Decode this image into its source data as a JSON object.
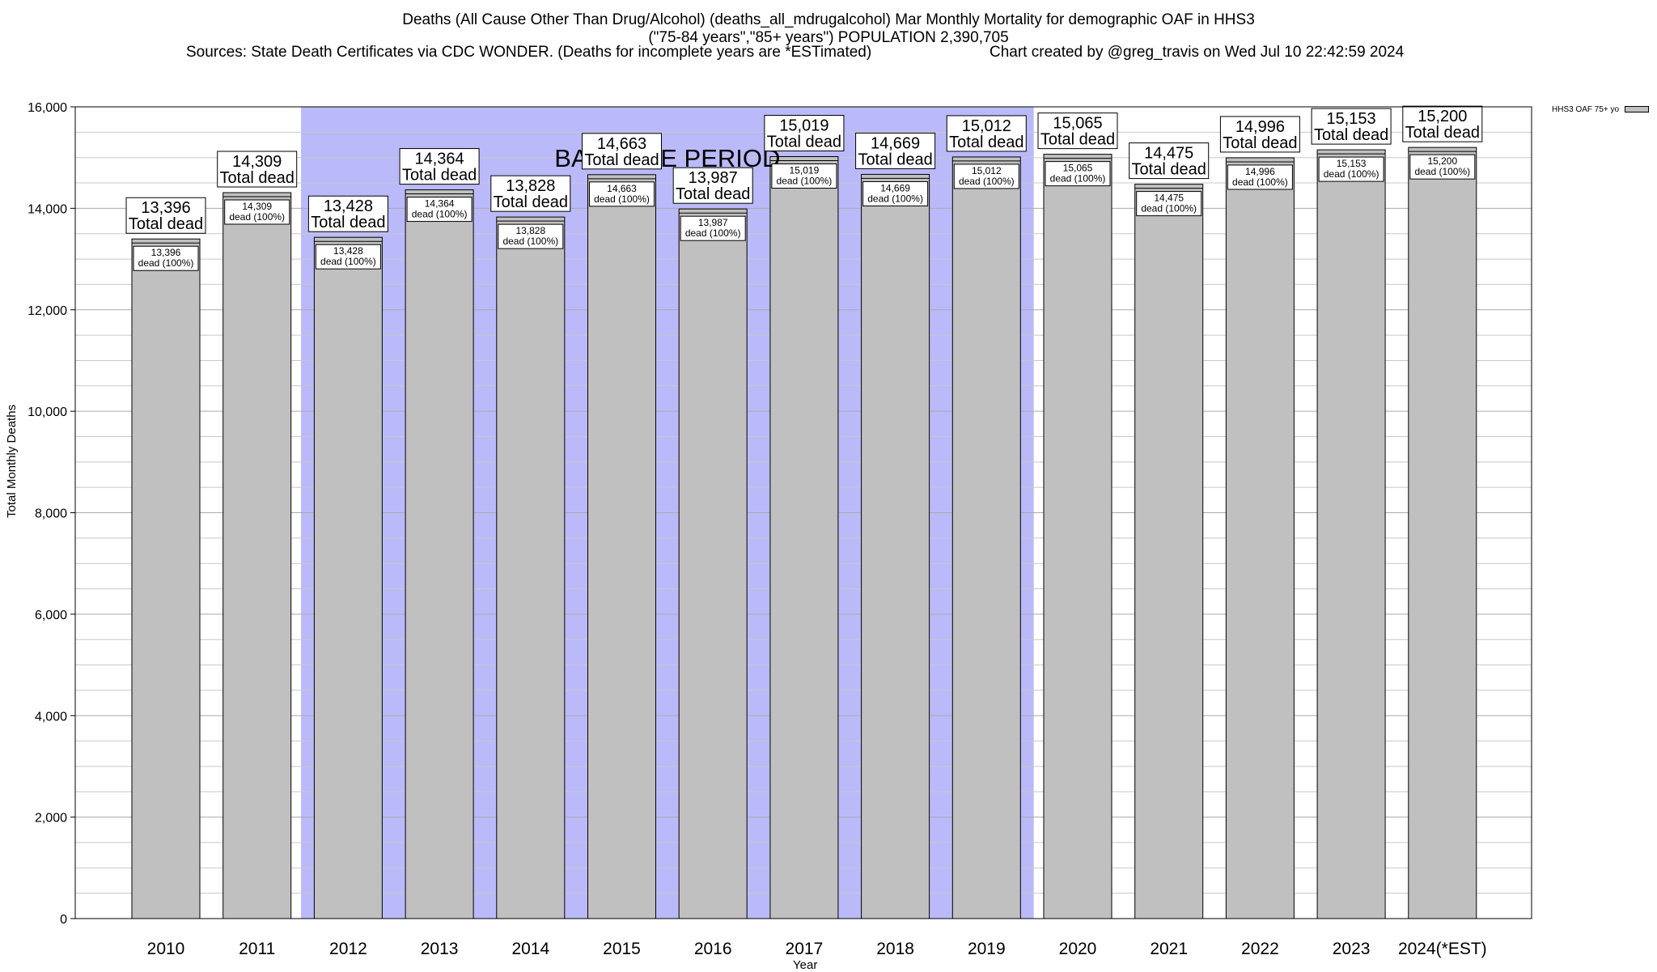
{
  "title": {
    "line1": "Deaths (All Cause Other Than Drug/Alcohol) (deaths_all_mdrugalcohol) Mar Monthly Mortality for demographic OAF in HHS3",
    "line2": "(\"75-84 years\",\"85+ years\") POPULATION 2,390,705",
    "sources": "Sources: State Death Certificates via CDC WONDER. (Deaths for incomplete years are *ESTimated)",
    "credit": "Chart created by @greg_travis on Wed Jul 10 22:42:59 2024"
  },
  "colors": {
    "bar": "#c0c0c0",
    "baseline_band": "#babafa",
    "grid": "#c8c8c8"
  },
  "chart_data": {
    "type": "bar",
    "title": "Deaths (All Cause Other Than Drug/Alcohol) (deaths_all_mdrugalcohol) Mar Monthly Mortality for demographic OAF in HHS3",
    "xlabel": "Year",
    "ylabel": "Total Monthly Deaths",
    "ylim": [
      0,
      16000
    ],
    "yticks": [
      0,
      2000,
      4000,
      6000,
      8000,
      10000,
      12000,
      14000,
      16000
    ],
    "ytick_labels": [
      "0",
      "2,000",
      "4,000",
      "6,000",
      "8,000",
      "10,000",
      "12,000",
      "14,000",
      "16,000"
    ],
    "grid": true,
    "legend_position": "top-right",
    "categories": [
      "2010",
      "2011",
      "2012",
      "2013",
      "2014",
      "2015",
      "2016",
      "2017",
      "2018",
      "2019",
      "2020",
      "2021",
      "2022",
      "2023",
      "2024(*EST)"
    ],
    "series": [
      {
        "name": "HHS3 OAF 75+ yo",
        "values": [
          13396,
          14309,
          13428,
          14364,
          13828,
          14663,
          13987,
          15019,
          14669,
          15012,
          15065,
          14475,
          14996,
          15153,
          15200
        ]
      }
    ],
    "value_labels": [
      "13,396",
      "14,309",
      "13,428",
      "14,364",
      "13,828",
      "14,663",
      "13,987",
      "15,019",
      "14,669",
      "15,012",
      "15,065",
      "14,475",
      "14,996",
      "15,153",
      "15,200"
    ],
    "total_label_suffix": "Total dead",
    "inner_label_suffix": "dead (100%)",
    "baseline": {
      "label": "BASELINE PERIOD",
      "start": "2012",
      "end": "2019"
    }
  }
}
